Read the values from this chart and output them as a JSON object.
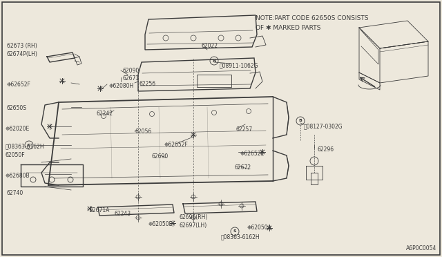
{
  "bg_color": "#ede8dc",
  "line_color": "#3a3a3a",
  "note_line1": "NOTE:PART CODE 62650S CONSISTS",
  "note_line2": "OF ✱ MARKED PARTS",
  "footer_text": "A6P0C0054",
  "fig_width": 6.4,
  "fig_height": 3.72,
  "dpi": 100
}
